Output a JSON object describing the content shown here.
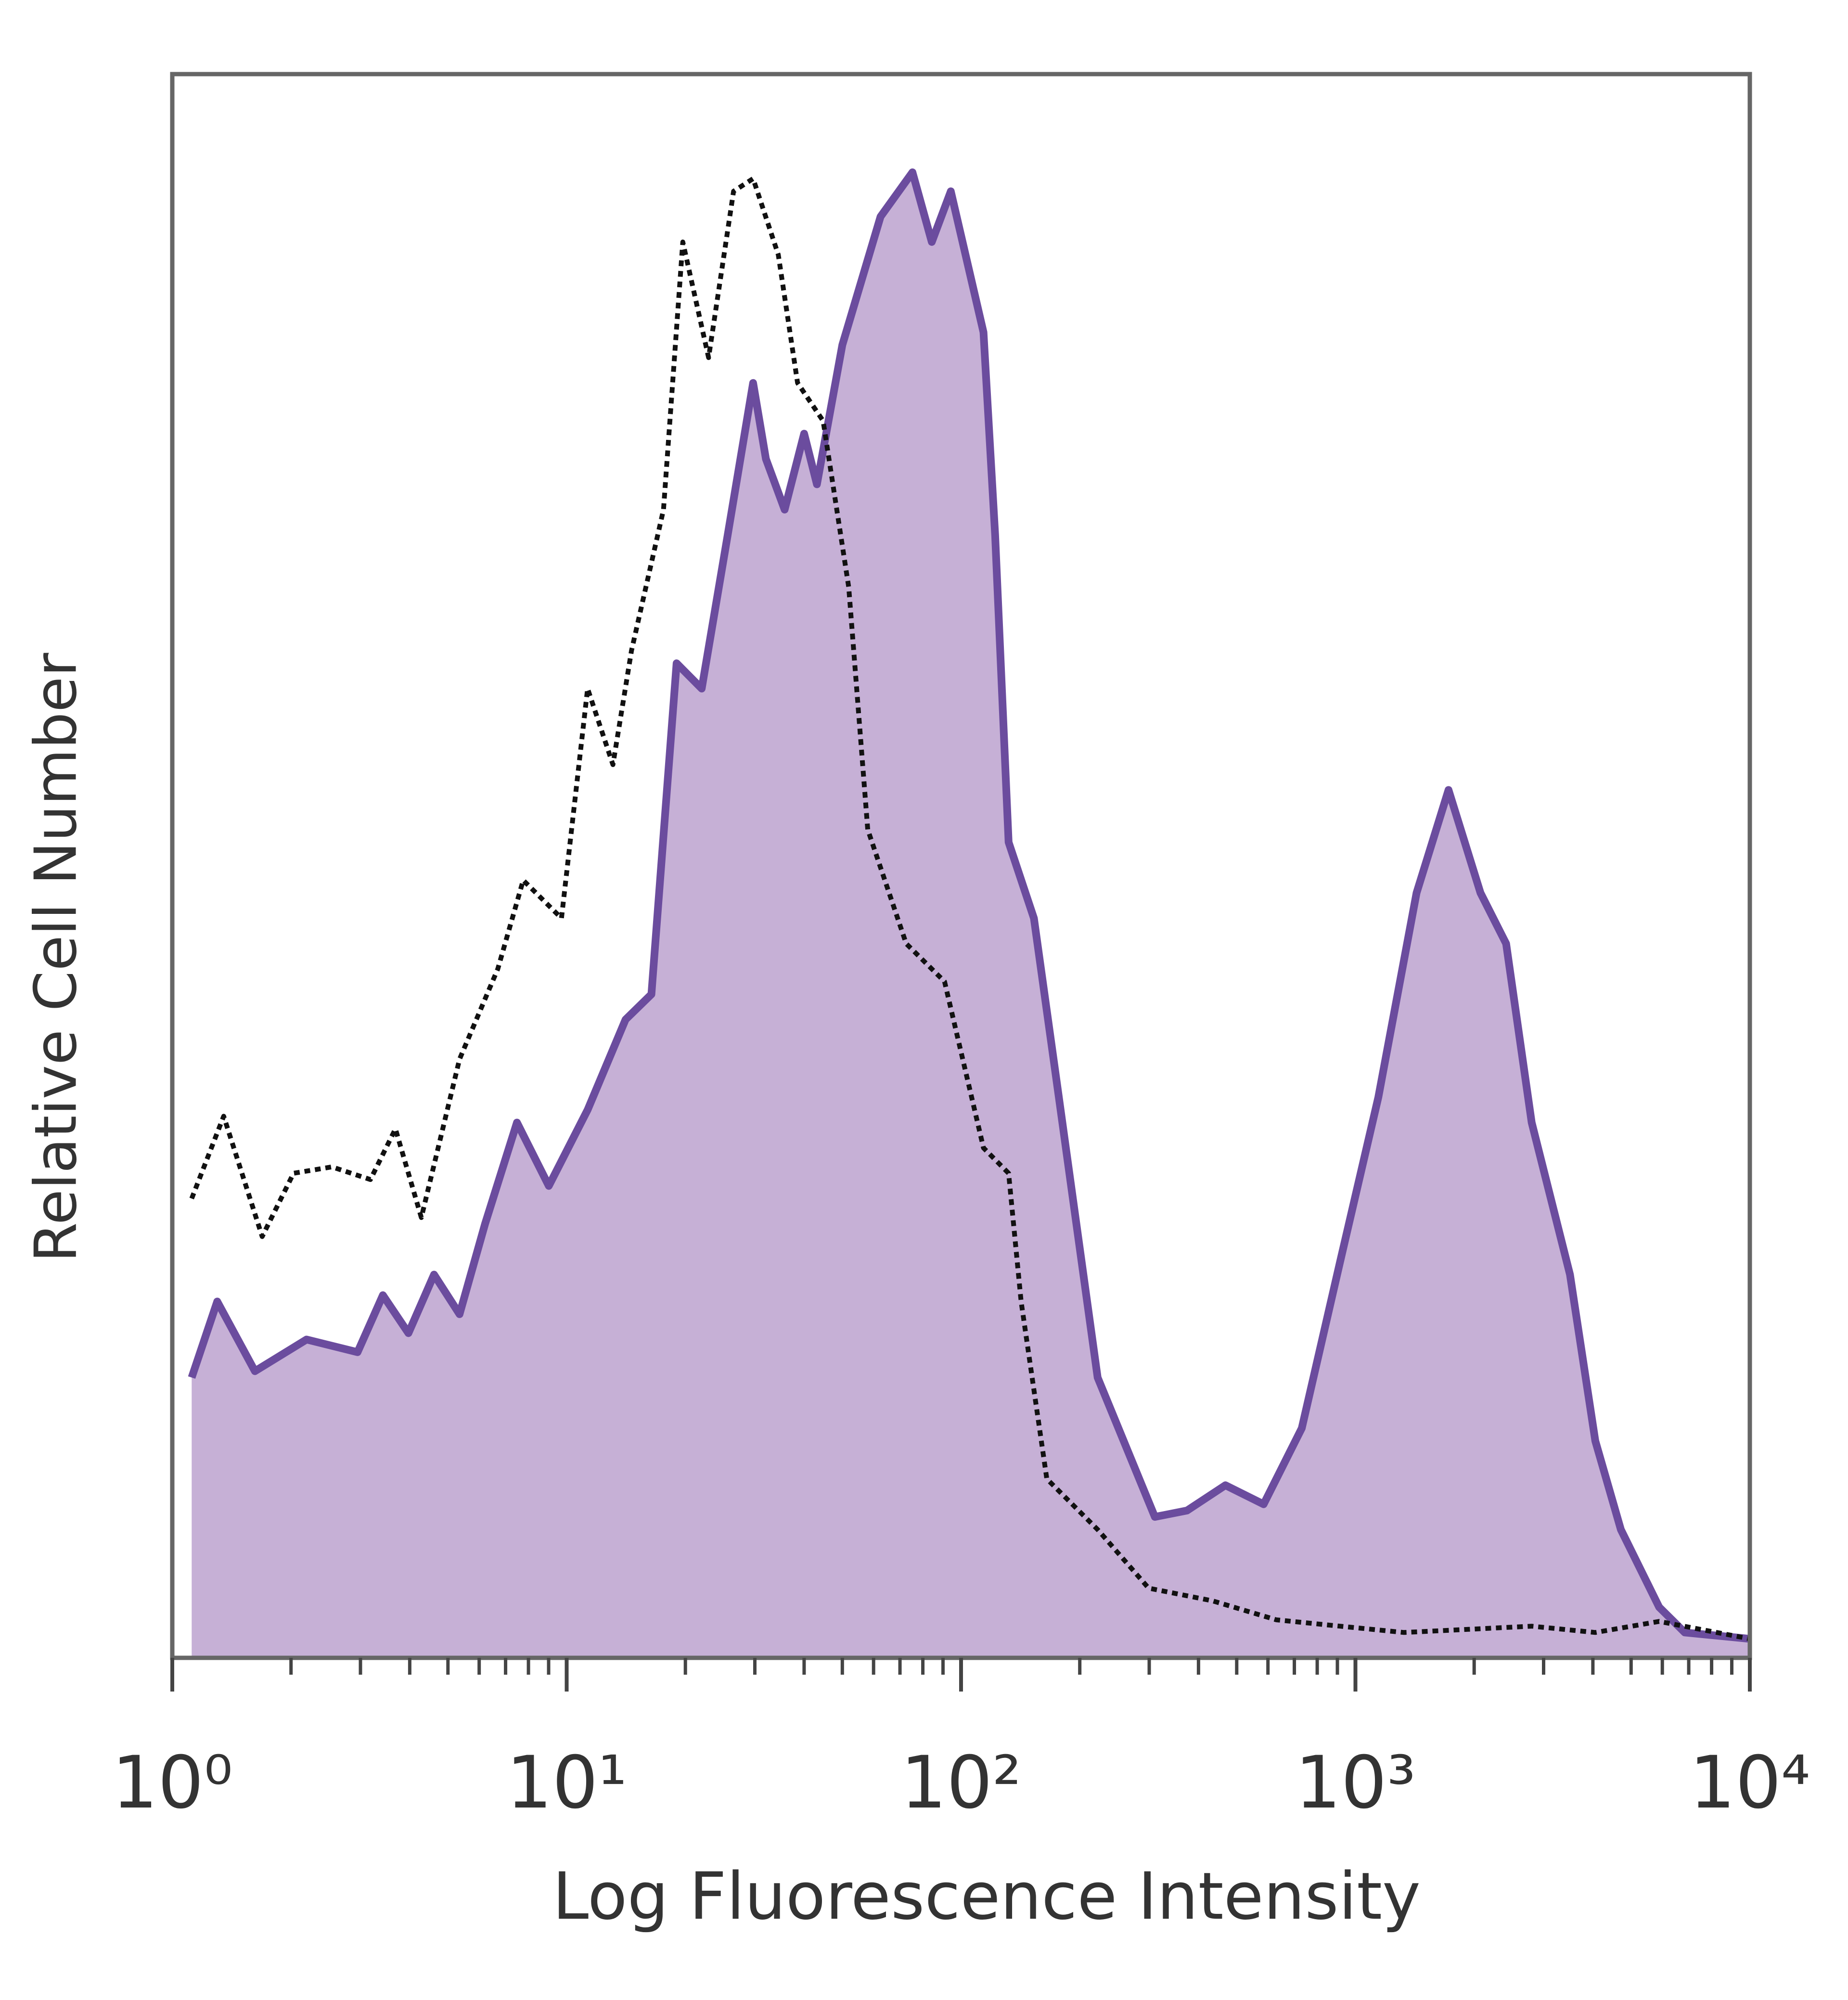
{
  "chart_data": {
    "type": "histogram-overlay",
    "xlabel": "Log Fluorescence Intensity",
    "ylabel": "Relative Cell Number",
    "xscale": "log",
    "xlim": [
      1,
      10000
    ],
    "ylim": [
      0,
      100
    ],
    "xticks": [
      {
        "value": 1,
        "label": "10⁰"
      },
      {
        "value": 10,
        "label": "10¹"
      },
      {
        "value": 100,
        "label": "10²"
      },
      {
        "value": 1000,
        "label": "10³"
      },
      {
        "value": 10000,
        "label": "10⁴"
      }
    ],
    "series": [
      {
        "color": "#6b4c9e",
        "fill_color": "#c6b0d6",
        "style": "solid",
        "x": [
          1.12,
          1.3,
          1.62,
          2.19,
          2.95,
          3.42,
          3.97,
          4.61,
          5.35,
          6.21,
          7.48,
          9.01,
          11.3,
          14.1,
          16.4,
          19.0,
          22.0,
          25.6,
          29.7,
          32.0,
          35.7,
          40.0,
          43.1,
          50.0,
          62.5,
          75.3,
          84.3,
          94.2,
          114,
          122,
          132,
          153,
          177,
          222,
          310,
          374,
          468,
          585,
          731,
          914,
          1143,
          1429,
          1722,
          2075,
          2410,
          2798,
          3499,
          4057,
          4710,
          5890,
          6840,
          10000
        ],
        "values": [
          17.7,
          22.5,
          18.1,
          20.1,
          19.3,
          22.9,
          20.5,
          24.2,
          21.7,
          27.4,
          33.8,
          29.8,
          34.6,
          40.3,
          41.9,
          62.8,
          61.2,
          70.9,
          80.5,
          75.7,
          72.5,
          77.3,
          74.1,
          82.9,
          91.0,
          93.8,
          89.4,
          92.6,
          83.7,
          70.9,
          51.5,
          46.7,
          35.4,
          17.7,
          8.9,
          9.3,
          10.9,
          9.7,
          14.5,
          25.0,
          35.4,
          48.3,
          54.8,
          48.3,
          45.1,
          33.8,
          24.2,
          13.7,
          8.1,
          3.2,
          1.6,
          1.2
        ]
      },
      {
        "color": "#111111",
        "style": "dotted",
        "x": [
          1.12,
          1.35,
          1.69,
          2.03,
          2.54,
          3.18,
          3.68,
          4.28,
          5.35,
          6.69,
          7.76,
          9.7,
          11.3,
          13.1,
          14.6,
          17.6,
          19.7,
          22.9,
          26.5,
          29.7,
          34.4,
          38.5,
          44.7,
          51.9,
          58.0,
          72.6,
          90.8,
          114,
          132,
          142,
          165,
          222,
          299,
          434,
          630,
          914,
          1327,
          1927,
          2798,
          4057,
          5890,
          10000
        ],
        "values": [
          29.0,
          34.2,
          26.6,
          30.6,
          31.0,
          30.2,
          33.4,
          27.8,
          37.8,
          43.5,
          49.1,
          46.7,
          61.2,
          56.4,
          63.6,
          72.5,
          89.4,
          82.1,
          92.6,
          93.4,
          88.6,
          80.5,
          78.1,
          67.6,
          52.3,
          45.1,
          42.7,
          32.2,
          30.6,
          22.5,
          11.3,
          8.1,
          4.4,
          3.6,
          2.4,
          2.0,
          1.6,
          1.8,
          2.0,
          1.6,
          2.3,
          1.2
        ]
      }
    ]
  }
}
